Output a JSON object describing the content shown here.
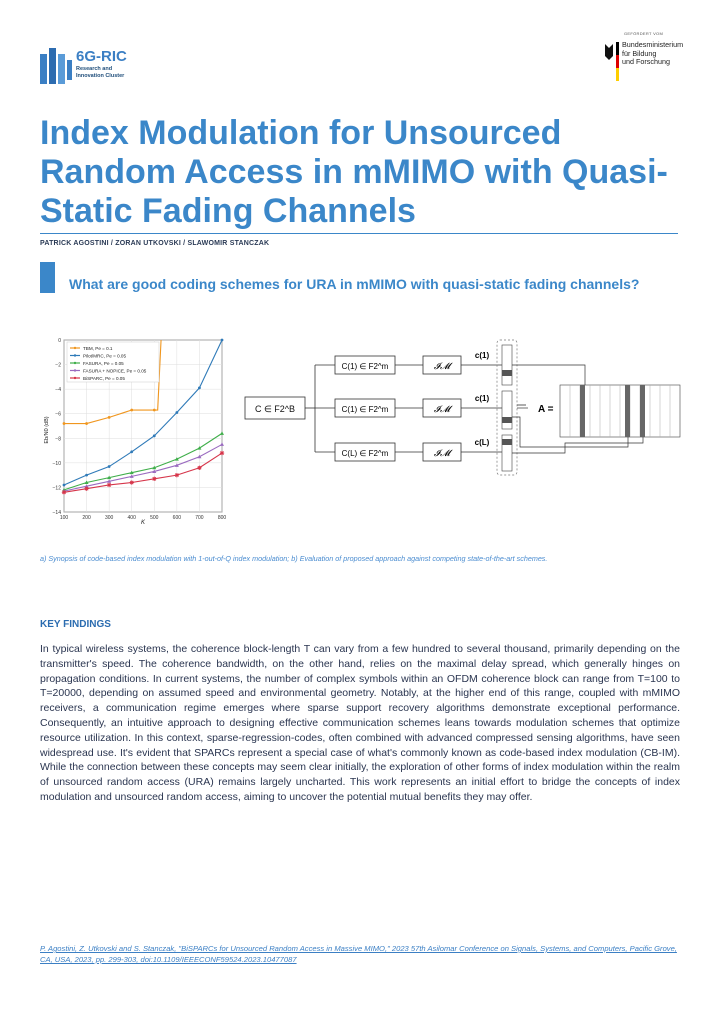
{
  "header": {
    "funding_note": "GEFÖRDERT VOM",
    "logo": {
      "name": "6G-RIC",
      "subtitle_line1": "Research and",
      "subtitle_line2": "Innovation Cluster"
    },
    "ministry": {
      "line1": "Bundesministerium",
      "line2": "für Bildung",
      "line3": "und Forschung"
    }
  },
  "title": "Index Modulation for Unsourced Random Access in mMIMO with Quasi-Static Fading Channels",
  "authors": "PATRICK AGOSTINI / ZORAN UTKOVSKI / SLAWOMIR STANCZAK",
  "question": "What are good coding schemes for URA in mMIMO with quasi-static fading channels?",
  "chart_data": {
    "type": "line",
    "xlabel": "K",
    "ylabel": "Eb/N0 (dB)",
    "xlim": [
      100,
      800
    ],
    "ylim": [
      -14,
      0
    ],
    "xticks": [
      "100",
      "200",
      "300",
      "400",
      "500",
      "600",
      "700",
      "800"
    ],
    "yticks": [
      "0",
      "−2",
      "−4",
      "−6",
      "−8",
      "−10",
      "−12",
      "−14"
    ],
    "x": [
      100,
      200,
      300,
      400,
      500,
      600,
      700,
      800
    ],
    "legend_position": "top-left",
    "series": [
      {
        "name": "TBM, Pe = 0.1",
        "color": "#f0961e",
        "marker": "circle",
        "values": [
          -6.8,
          -6.8,
          -6.3,
          -5.7,
          -5.7,
          null,
          null,
          null
        ],
        "tail": [
          [
            515,
            -5.7
          ],
          [
            530,
            0
          ]
        ]
      },
      {
        "name": "Pilot/MRC, Pe = 0.05",
        "color": "#2f7ab8",
        "marker": "circle",
        "values": [
          -11.8,
          -11.0,
          -10.3,
          -9.1,
          -7.8,
          -5.9,
          -3.9,
          0
        ]
      },
      {
        "name": "FASURA, Pe = 0.05",
        "color": "#3fae4a",
        "marker": "triangle",
        "values": [
          -12.2,
          -11.6,
          -11.2,
          -10.8,
          -10.4,
          -9.7,
          -8.8,
          -7.6
        ]
      },
      {
        "name": "FASURA + NOPICE, Pe = 0.05",
        "color": "#9a6bc0",
        "marker": "triangle",
        "values": [
          -12.3,
          -11.9,
          -11.5,
          -11.1,
          -10.7,
          -10.2,
          -9.5,
          -8.5
        ]
      },
      {
        "name": "BiSPARC, Pe = 0.05",
        "color": "#d6354a",
        "marker": "star",
        "values": [
          -12.4,
          -12.1,
          -11.8,
          -11.6,
          -11.3,
          -11.0,
          -10.4,
          -9.2
        ]
      }
    ]
  },
  "diagram": {
    "input": "C ∈ F2^B",
    "encoders": [
      "C(1) ∈ F2^m",
      "C(1) ∈ F2^m",
      "C(L) ∈ F2^m"
    ],
    "im_label": "𝓘𝓜",
    "codewords": [
      "c(1)",
      "c(1)",
      "c(L)"
    ],
    "matrix": "A ="
  },
  "caption": "a) Synopsis of code-based index modulation with 1-out-of-Q index modulation; b) Evaluation of proposed approach against competing state-of-the-art schemes.",
  "key_findings": {
    "heading": "KEY FINDINGS",
    "text": "In typical wireless systems, the coherence block-length T can vary from a few hundred to several thousand, primarily depending on the transmitter's speed. The coherence bandwidth, on the other hand, relies on the maximal delay spread, which generally hinges on propagation conditions. In current systems, the number of complex symbols within an OFDM coherence block can range from T=100 to T=20000, depending on assumed speed and environmental geometry. Notably, at the higher end of this range, coupled with mMIMO receivers, a communication regime emerges where sparse support recovery algorithms demonstrate exceptional performance. Consequently, an intuitive approach to designing effective communication schemes leans towards modulation schemes that optimize resource utilization. In this context, sparse-regression-codes, often combined with advanced compressed sensing algorithms, have seen widespread use. It's evident that SPARCs represent a special case of what's commonly known as code-based index modulation (CB-IM). While the connection between these concepts may seem clear initially, the exploration of other forms of index modulation within the realm of unsourced random access (URA) remains largely uncharted. This work represents an initial effort to bridge the concepts of index modulation and unsourced random access, aiming to uncover the potential mutual benefits they may offer."
  },
  "reference": "P. Agostini, Z. Utkovski and S. Stanczak, \"BiSPARCs for Unsourced Random Access in Massive MIMO,\" 2023 57th Asilomar Conference on Signals, Systems, and Computers, Pacific Grove, CA, USA, 2023, pp. 299-303, doi:10.1109/IEEECONF59524.2023.10477087",
  "colors": {
    "accent": "#3b87c9",
    "text": "#2a3550"
  }
}
